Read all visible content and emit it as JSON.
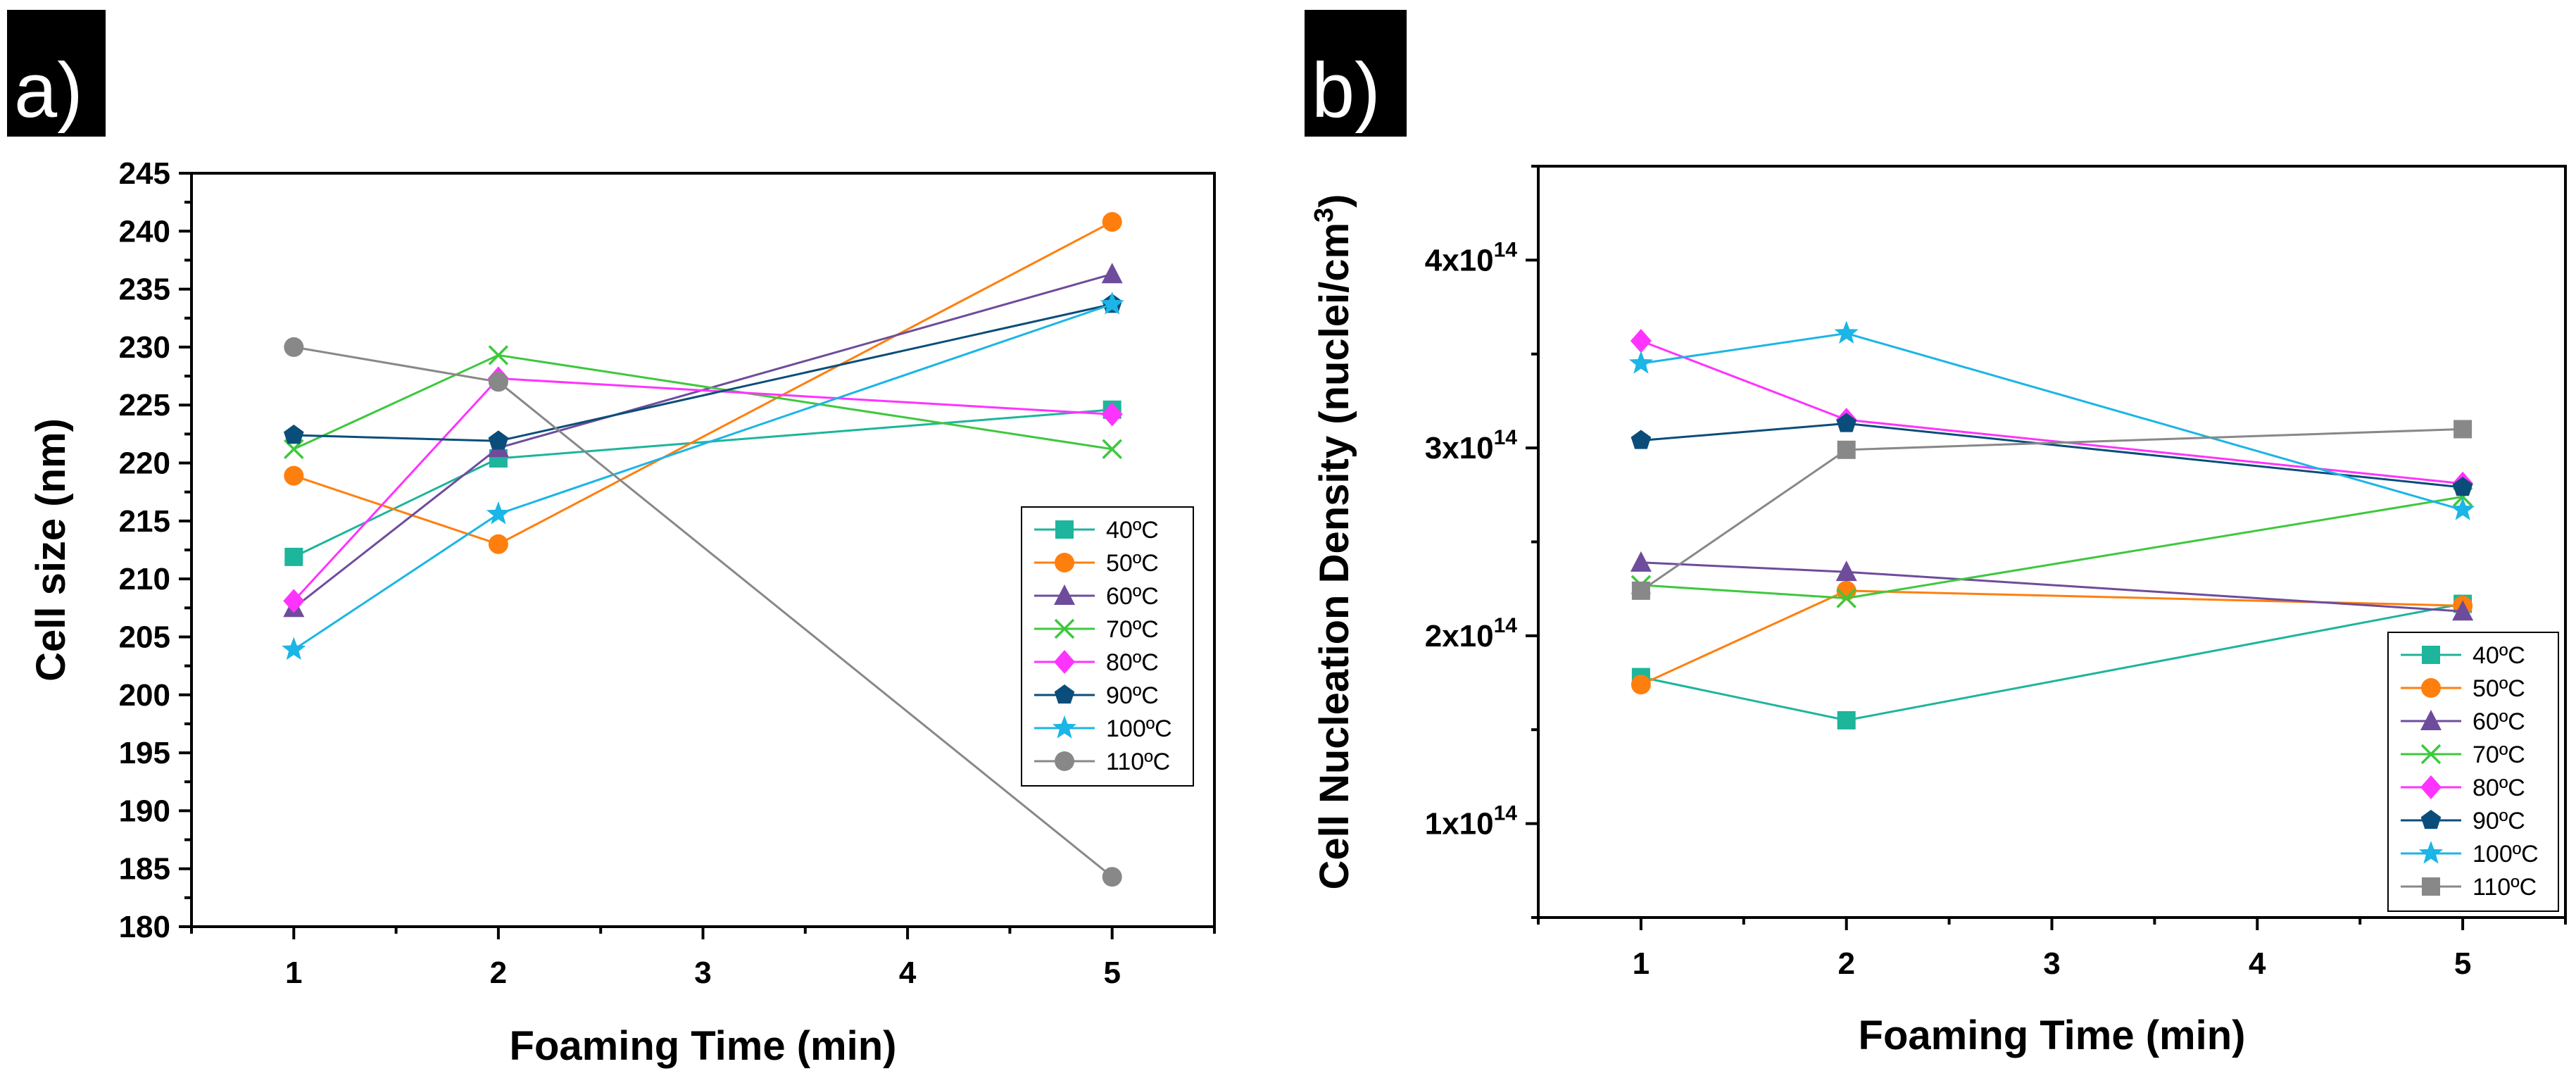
{
  "chart_data": [
    {
      "type": "line",
      "panel_label": "a)",
      "xlabel": "Foaming Time (min)",
      "ylabel": "Cell size (nm)",
      "xlim": [
        0.5,
        5.5
      ],
      "ylim": [
        180,
        245
      ],
      "x_ticks": [
        1,
        2,
        3,
        4,
        5
      ],
      "y_ticks": [
        180,
        185,
        190,
        195,
        200,
        205,
        210,
        215,
        220,
        225,
        230,
        235,
        240,
        245
      ],
      "legend_position": "center-right",
      "series": [
        {
          "name": "40ºC",
          "color": "#1db59b",
          "marker": "square",
          "x": [
            1,
            2,
            5
          ],
          "y": [
            211.9,
            220.4,
            224.6
          ]
        },
        {
          "name": "50ºC",
          "color": "#ff7f0e",
          "marker": "circle",
          "x": [
            1,
            2,
            5
          ],
          "y": [
            218.9,
            213.0,
            240.8
          ]
        },
        {
          "name": "60ºC",
          "color": "#6e4c9c",
          "marker": "triangle",
          "x": [
            1,
            2,
            5
          ],
          "y": [
            207.5,
            221.3,
            236.3
          ]
        },
        {
          "name": "70ºC",
          "color": "#3dc83d",
          "marker": "x",
          "x": [
            1,
            2,
            5
          ],
          "y": [
            221.2,
            229.3,
            221.2
          ]
        },
        {
          "name": "80ºC",
          "color": "#ff33ff",
          "marker": "diamond",
          "x": [
            1,
            2,
            5
          ],
          "y": [
            208.1,
            227.3,
            224.2
          ]
        },
        {
          "name": "90ºC",
          "color": "#0b4d7a",
          "marker": "pentagon",
          "x": [
            1,
            2,
            5
          ],
          "y": [
            222.4,
            221.9,
            233.7
          ]
        },
        {
          "name": "100ºC",
          "color": "#1bb5e6",
          "marker": "star",
          "x": [
            1,
            2,
            5
          ],
          "y": [
            203.9,
            215.6,
            233.7
          ]
        },
        {
          "name": "110ºC",
          "color": "#888888",
          "marker": "circle",
          "x": [
            1,
            2,
            5
          ],
          "y": [
            230.0,
            227.0,
            184.3
          ]
        }
      ]
    },
    {
      "type": "line",
      "panel_label": "b)",
      "xlabel": "Foaming Time (min)",
      "ylabel_main": "Cell Nucleation Density (nuclei/cm",
      "ylabel_sup": "3",
      "ylabel_end": ")",
      "xlim": [
        0.5,
        5.5
      ],
      "ylim_e14": [
        0.5,
        4.5
      ],
      "x_ticks": [
        1,
        2,
        3,
        4,
        5
      ],
      "y_ticks": [
        {
          "value": 1,
          "mant": "1x10",
          "exp": "14"
        },
        {
          "value": 2,
          "mant": "2x10",
          "exp": "14"
        },
        {
          "value": 3,
          "mant": "3x10",
          "exp": "14"
        },
        {
          "value": 4,
          "mant": "4x10",
          "exp": "14"
        }
      ],
      "y_unit_note": "values in units of 10^14 nuclei/cm^3",
      "legend_position": "bottom-right",
      "series": [
        {
          "name": "40ºC",
          "color": "#1db59b",
          "marker": "square",
          "x": [
            1,
            2,
            5
          ],
          "y": [
            1.78,
            1.55,
            2.17
          ]
        },
        {
          "name": "50ºC",
          "color": "#ff7f0e",
          "marker": "circle",
          "x": [
            1,
            2,
            5
          ],
          "y": [
            1.74,
            2.24,
            2.16
          ]
        },
        {
          "name": "60ºC",
          "color": "#6e4c9c",
          "marker": "triangle",
          "x": [
            1,
            2,
            5
          ],
          "y": [
            2.39,
            2.34,
            2.13
          ]
        },
        {
          "name": "70ºC",
          "color": "#3dc83d",
          "marker": "x",
          "x": [
            1,
            2,
            5
          ],
          "y": [
            2.27,
            2.2,
            2.74
          ]
        },
        {
          "name": "80ºC",
          "color": "#ff33ff",
          "marker": "diamond",
          "x": [
            1,
            2,
            5
          ],
          "y": [
            3.57,
            3.15,
            2.81
          ]
        },
        {
          "name": "90ºC",
          "color": "#0b4d7a",
          "marker": "pentagon",
          "x": [
            1,
            2,
            5
          ],
          "y": [
            3.04,
            3.13,
            2.79
          ]
        },
        {
          "name": "100ºC",
          "color": "#1bb5e6",
          "marker": "star",
          "x": [
            1,
            2,
            5
          ],
          "y": [
            3.45,
            3.61,
            2.67
          ]
        },
        {
          "name": "110ºC",
          "color": "#888888",
          "marker": "square",
          "x": [
            1,
            2,
            5
          ],
          "y": [
            2.24,
            2.99,
            3.1
          ]
        }
      ]
    }
  ]
}
